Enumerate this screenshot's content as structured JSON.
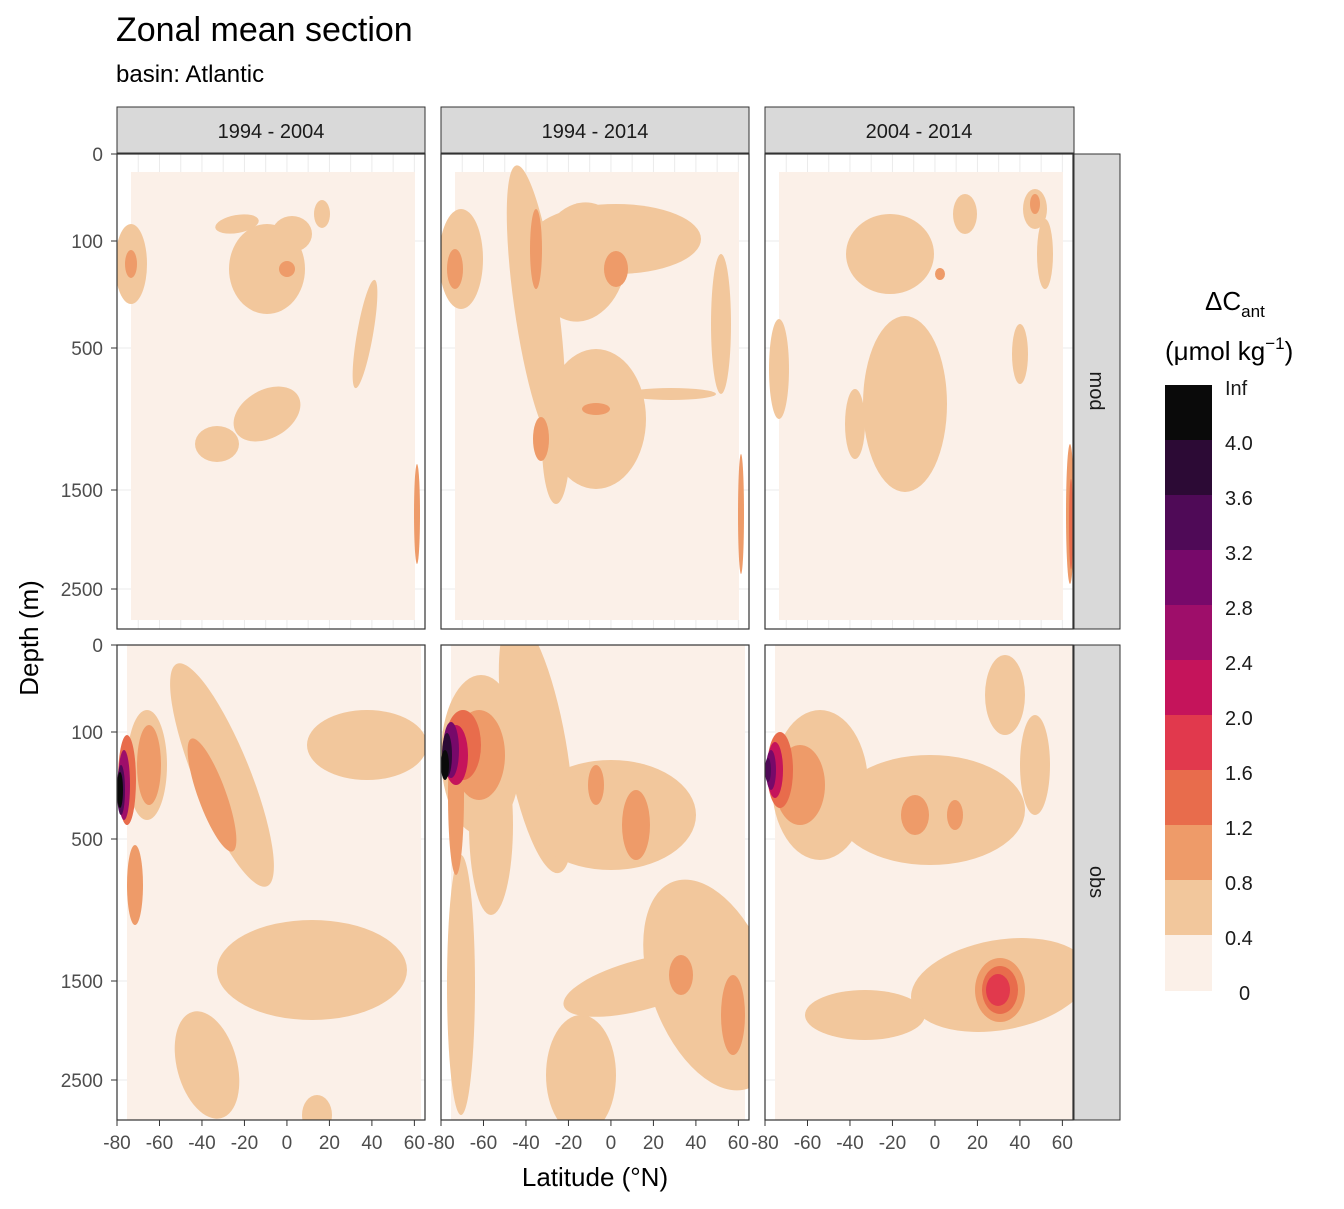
{
  "title": "Zonal mean section",
  "subtitle": "basin: Atlantic",
  "chart_data": {
    "type": "contour",
    "xlabel": "Latitude (°N)",
    "ylabel": "Depth (m)",
    "xlim": [
      -80,
      65
    ],
    "x_ticks": [
      "-80",
      "-60",
      "-40",
      "-20",
      "0",
      "20",
      "40",
      "60"
    ],
    "y_ticks": [
      "0",
      "100",
      "500",
      "1500",
      "2500"
    ],
    "y_scale": "sqrt-like (reversed depth)",
    "columns": [
      "1994 - 2004",
      "1994 - 2014",
      "2004 - 2014"
    ],
    "rows": [
      "mod",
      "obs"
    ],
    "legend": {
      "title_main": "ΔC",
      "title_sub": "ant",
      "unit_main": "(μmol kg",
      "unit_sup": "−1",
      "unit_end": ")",
      "breaks": [
        "Inf",
        "4.0",
        "3.6",
        "3.2",
        "2.8",
        "2.4",
        "2.0",
        "1.6",
        "1.2",
        "0.8",
        "0.4",
        "0"
      ],
      "colors": [
        "#fbf0e8",
        "#f2c79c",
        "#ee9b69",
        "#e86c4c",
        "#e1394d",
        "#c5145b",
        "#9e0e6a",
        "#77096a",
        "#4f0a57",
        "#2c0a35",
        "#0a0a0a"
      ]
    },
    "panels": [
      {
        "column": "1994 - 2004",
        "row": "mod",
        "max_band": "1.2"
      },
      {
        "column": "1994 - 2014",
        "row": "mod",
        "max_band": "1.2"
      },
      {
        "column": "2004 - 2014",
        "row": "mod",
        "max_band": "1.6"
      },
      {
        "column": "1994 - 2004",
        "row": "obs",
        "max_band": "Inf"
      },
      {
        "column": "1994 - 2014",
        "row": "obs",
        "max_band": "Inf"
      },
      {
        "column": "2004 - 2014",
        "row": "obs",
        "max_band": "2.8"
      }
    ]
  }
}
